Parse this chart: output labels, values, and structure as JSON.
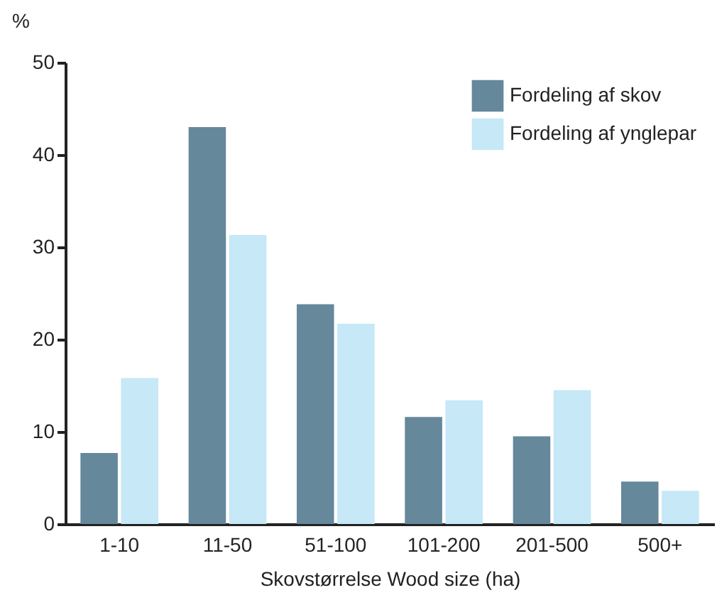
{
  "chart_data": {
    "type": "bar",
    "xlabel": "Skovstørrelse Wood size (ha)",
    "ylabel": "%",
    "categories": [
      "1-10",
      "11-50",
      "51-100",
      "101-200",
      "201-500",
      "500+"
    ],
    "series": [
      {
        "name": "Fordeling af skov",
        "color": "#65889b",
        "values": [
          7.7,
          43.0,
          23.8,
          11.6,
          9.5,
          4.6
        ]
      },
      {
        "name": "Fordeling af ynglepar",
        "color": "#c6e8f7",
        "values": [
          15.8,
          31.3,
          21.7,
          13.4,
          14.5,
          3.6
        ]
      }
    ],
    "ylim": [
      0,
      50
    ],
    "yticks": [
      0,
      10,
      20,
      30,
      40,
      50
    ],
    "grid": false,
    "legend": "top right"
  }
}
